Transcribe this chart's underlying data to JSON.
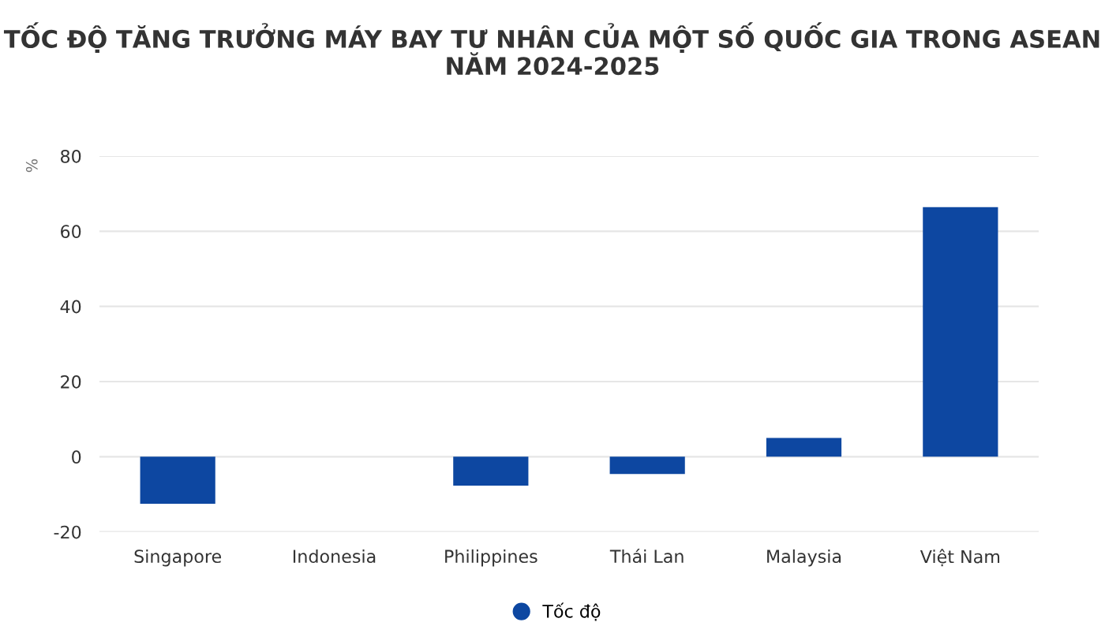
{
  "chart_data": {
    "type": "bar",
    "title": "TỐC ĐỘ TĂNG TRƯỞNG MÁY BAY TƯ NHÂN CỦA MỘT SỐ QUỐC GIA TRONG ASEAN NĂM 2024-2025",
    "ylabel": "%",
    "categories": [
      "Singapore",
      "Indonesia",
      "Philippines",
      "Thái Lan",
      "Malaysia",
      "Việt Nam"
    ],
    "series": [
      {
        "name": "Tốc độ",
        "color": "#0d47a1",
        "values": [
          -12.5,
          0,
          -7.7,
          -4.6,
          5.0,
          66.4
        ]
      }
    ],
    "ylim": [
      -20,
      80
    ],
    "yticks": [
      -20,
      0,
      20,
      40,
      60,
      80
    ],
    "grid": "y",
    "legend": "bottom"
  }
}
